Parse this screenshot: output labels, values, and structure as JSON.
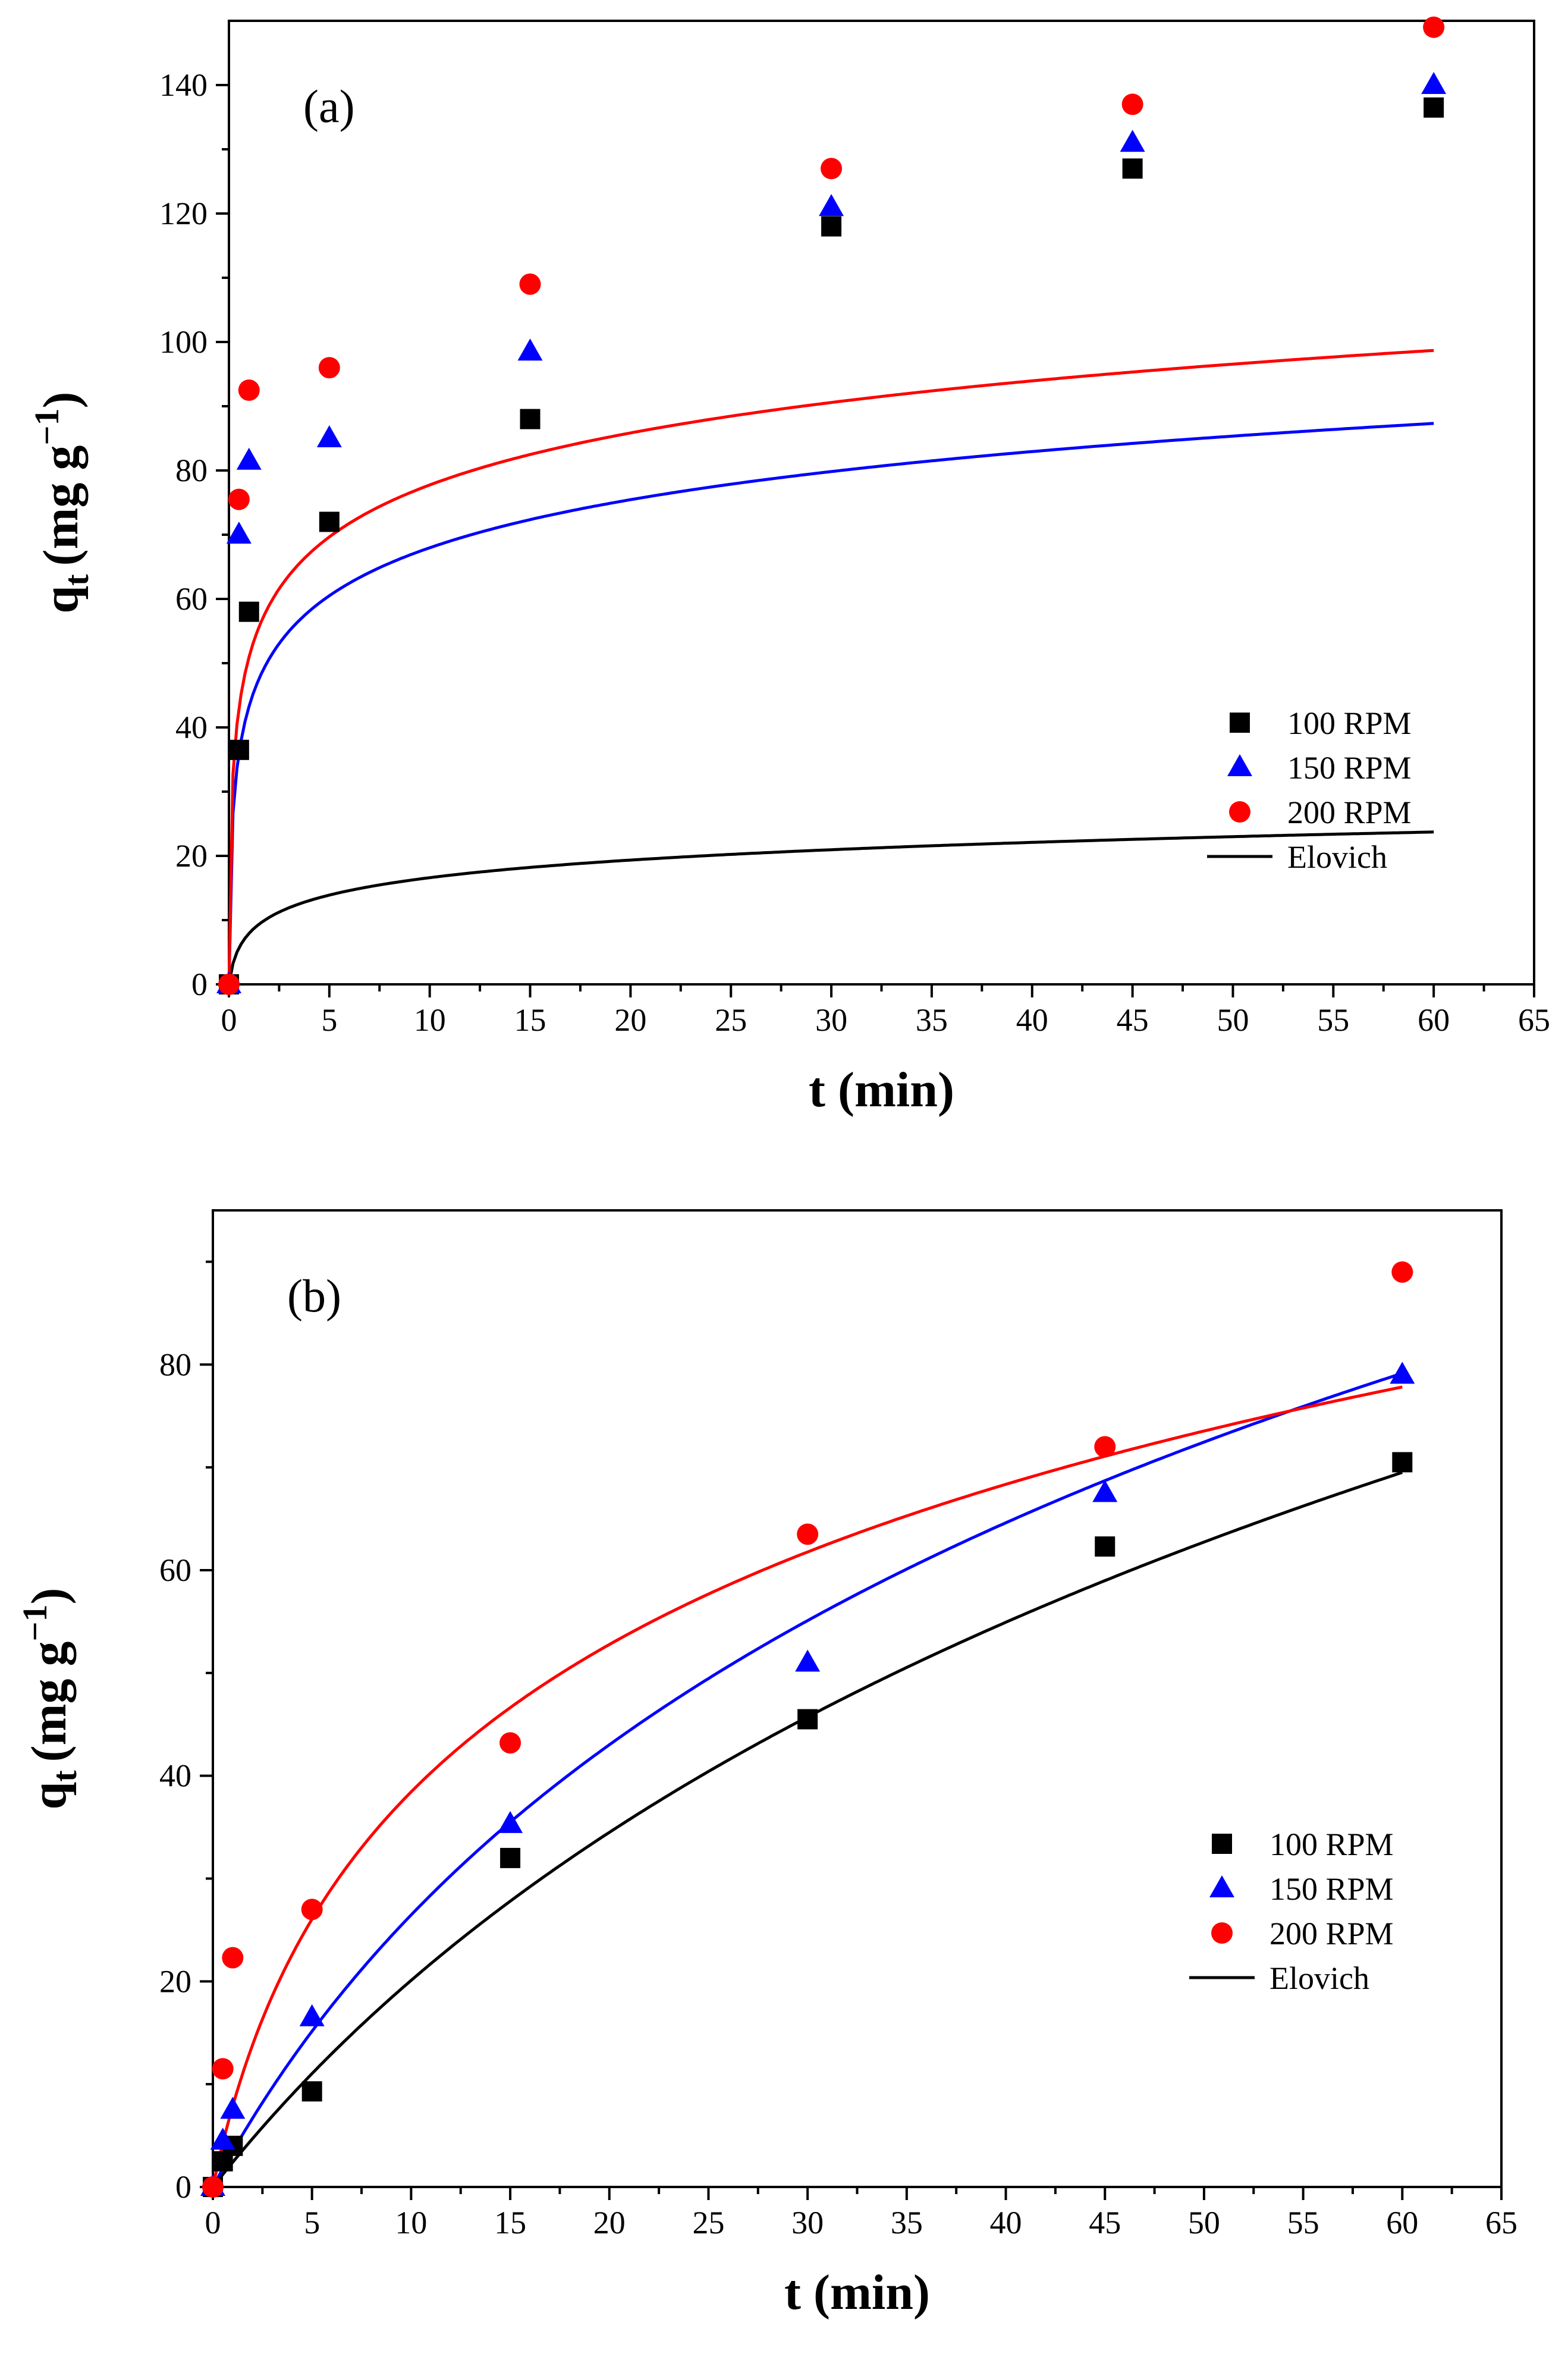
{
  "colors": {
    "series1": "#000000",
    "series2": "#0000ff",
    "series3": "#ff0000"
  },
  "chart_data": [
    {
      "type": "scatter",
      "panel_label": "(a)",
      "xlabel": "t (min)",
      "ylabel": "q",
      "ylabel_sub": "t",
      "ylabel_unit": "(mg g",
      "ylabel_exp": "−1",
      "ylabel_close": ")",
      "xlim": [
        0,
        65
      ],
      "ylim": [
        0,
        150
      ],
      "xticks": [
        0,
        5,
        10,
        15,
        20,
        25,
        30,
        35,
        40,
        45,
        50,
        55,
        60,
        65
      ],
      "yticks": [
        0,
        20,
        40,
        60,
        80,
        100,
        120,
        140
      ],
      "legend": {
        "placement": "bottom-right",
        "fit_label": "Elovich"
      },
      "series": [
        {
          "name": "100 RPM",
          "marker": "square",
          "color": "#000000",
          "x": [
            0,
            0.5,
            1,
            5,
            15,
            30,
            45,
            60
          ],
          "y": [
            0,
            36.5,
            58,
            72,
            88,
            118,
            127,
            136.5
          ],
          "fit": {
            "a": 25.0,
            "b": 0.25
          }
        },
        {
          "name": "150 RPM",
          "marker": "triangle",
          "color": "#0000ff",
          "x": [
            0,
            0.5,
            1,
            5,
            15,
            30,
            45,
            60
          ],
          "y": [
            0,
            70,
            81.5,
            85,
            98.5,
            121,
            131,
            140
          ],
          "fit": {
            "a": 580,
            "b": 0.0925
          }
        },
        {
          "name": "200 RPM",
          "marker": "circle",
          "color": "#ff0000",
          "x": [
            0,
            0.5,
            1,
            5,
            15,
            30,
            45,
            60
          ],
          "y": [
            0,
            75.5,
            92.5,
            96,
            109,
            127,
            137,
            149
          ],
          "fit": {
            "a": 900,
            "b": 0.0855
          }
        }
      ]
    },
    {
      "type": "scatter",
      "panel_label": "(b)",
      "xlabel": "t (min)",
      "ylabel": "q",
      "ylabel_sub": "t",
      "ylabel_unit": "(mg g",
      "ylabel_exp": "−1",
      "ylabel_close": ")",
      "xlim": [
        0,
        65
      ],
      "ylim": [
        0,
        95
      ],
      "xticks": [
        0,
        5,
        10,
        15,
        20,
        25,
        30,
        35,
        40,
        45,
        50,
        55,
        60,
        65
      ],
      "yticks": [
        0,
        20,
        40,
        60,
        80
      ],
      "legend": {
        "placement": "bottom-right",
        "fit_label": "Elovich"
      },
      "series": [
        {
          "name": "100 RPM",
          "marker": "square",
          "color": "#000000",
          "x": [
            0,
            0.5,
            1,
            5,
            15,
            30,
            45,
            60
          ],
          "y": [
            0,
            2.5,
            4,
            9.3,
            32,
            45.5,
            62.3,
            70.5
          ],
          "fit": {
            "a": 2.46,
            "b": 0.0195
          }
        },
        {
          "name": "150 RPM",
          "marker": "triangle",
          "color": "#0000ff",
          "x": [
            0,
            0.5,
            1,
            5,
            15,
            30,
            45,
            60
          ],
          "y": [
            0,
            4.5,
            7.5,
            16.5,
            35.3,
            51,
            67.5,
            79
          ],
          "fit": {
            "a": 3.6,
            "b": 0.0222
          }
        },
        {
          "name": "200 RPM",
          "marker": "circle",
          "color": "#ff0000",
          "x": [
            0,
            0.5,
            1,
            5,
            15,
            30,
            45,
            60
          ],
          "y": [
            0,
            11.5,
            22.3,
            27,
            43.2,
            63.5,
            72,
            89
          ],
          "fit": {
            "a": 9.26,
            "b": 0.0406
          }
        }
      ]
    }
  ]
}
